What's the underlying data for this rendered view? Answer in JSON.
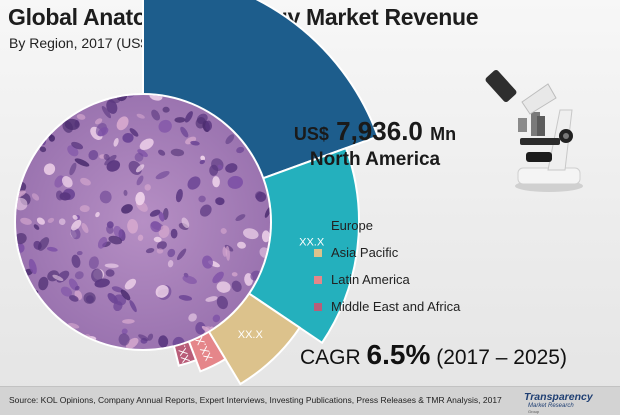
{
  "title": "Global Anatomic Pathology Market Revenue",
  "subtitle": "By Region, 2017 (US$ Mn)",
  "highlight": {
    "currency": "US$",
    "value": "7,936.0",
    "unit": "Mn",
    "region": "North America"
  },
  "cagr": {
    "label": "CAGR",
    "value": "6.5%",
    "period": "(2017 – 2025)"
  },
  "source": "Source: KOL Opinions, Company Annual Reports, Expert Interviews, Investing Publications, Press Releases & TMR Analysis, 2017",
  "logo": {
    "name": "Transparency",
    "sub": "Market Research",
    "sub2": "Group"
  },
  "chart_data": {
    "type": "pie",
    "categories": [
      "North America",
      "Europe",
      "Asia Pacific",
      "Latin America",
      "Middle East and Africa"
    ],
    "legend_categories": [
      "Europe",
      "Asia Pacific",
      "Latin America",
      "Middle East and Africa"
    ],
    "values": [
      7936.0,
      null,
      null,
      null,
      null
    ],
    "slice_labels": [
      "",
      "XX.X",
      "XX.X",
      "XX.X",
      "XX.X"
    ],
    "approx_angles_deg": [
      70,
      54,
      25,
      10,
      7
    ],
    "colors": [
      "#1d5d8c",
      "#24b0bd",
      "#dcc28c",
      "#e5868a",
      "#b95d79"
    ],
    "legend_placement": "right"
  }
}
